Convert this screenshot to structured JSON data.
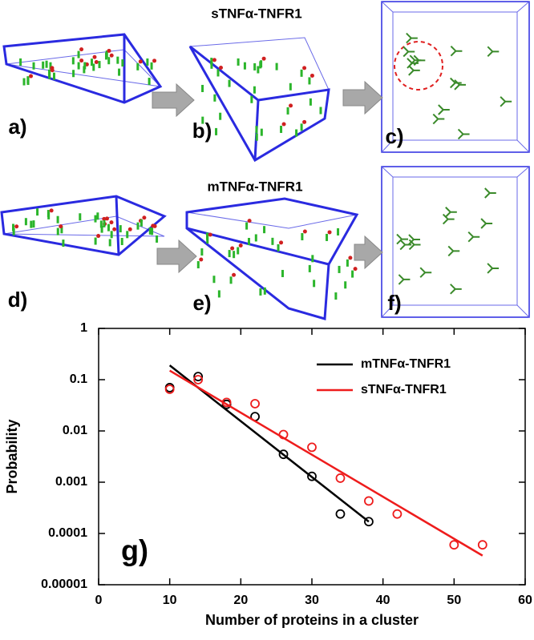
{
  "panels": {
    "title_top": "sTNFα-TNFR1",
    "title_mid": "mTNFα-TNFR1",
    "labels": [
      "a)",
      "b)",
      "c)",
      "d)",
      "e)",
      "f)"
    ]
  },
  "chart_data": {
    "type": "scatter",
    "panel_label": "g)",
    "x_label": "Number of proteins in a cluster",
    "y_label": "Probability",
    "xlim": [
      0,
      60
    ],
    "xticks": [
      0,
      10,
      20,
      30,
      40,
      50,
      60
    ],
    "ylim": [
      1e-05,
      1
    ],
    "yticks": [
      1e-05,
      0.0001,
      0.001,
      0.01,
      0.1,
      1
    ],
    "log_y": true,
    "grid": false,
    "legend": "upper right",
    "series": [
      {
        "name": "mTNFα-TNFR1",
        "color": "#000000",
        "x": [
          10,
          14,
          18,
          22,
          26,
          30,
          34,
          38
        ],
        "values": [
          0.07,
          0.115,
          0.033,
          0.019,
          0.0035,
          0.0013,
          0.00024,
          0.00017
        ],
        "fit": {
          "x": [
            10,
            38
          ],
          "values": [
            0.19,
            0.00017
          ]
        }
      },
      {
        "name": "sTNFα-TNFR1",
        "color": "#ee1c1c",
        "x": [
          10,
          14,
          18,
          22,
          26,
          30,
          34,
          38,
          42,
          50,
          54
        ],
        "values": [
          0.065,
          0.1,
          0.036,
          0.034,
          0.0085,
          0.0048,
          0.0012,
          0.00043,
          0.00024,
          6e-05,
          6e-05
        ],
        "fit": {
          "x": [
            10,
            54
          ],
          "values": [
            0.15,
            3.7e-05
          ]
        }
      }
    ]
  }
}
